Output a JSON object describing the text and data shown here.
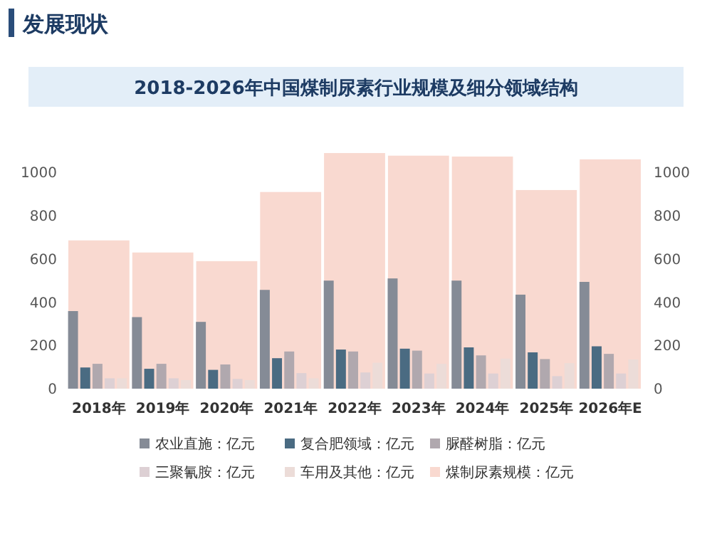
{
  "chart_data": {
    "type": "bar",
    "title": "2018-2026年中国煤制尿素行业规模及细分领域结构",
    "annotations": [
      "发展现状"
    ],
    "categories": [
      "2018年",
      "2019年",
      "2020年",
      "2021年",
      "2022年",
      "2023年",
      "2024年",
      "2025年",
      "2026年E"
    ],
    "series": [
      {
        "name": "农业直施：亿元",
        "color": "#858b96",
        "values": [
          359,
          331,
          309,
          457,
          500,
          510,
          500,
          435,
          494
        ]
      },
      {
        "name": "复合肥领域：亿元",
        "color": "#4a6b82",
        "values": [
          98,
          92,
          87,
          141,
          181,
          185,
          191,
          168,
          196
        ]
      },
      {
        "name": "脲醛树脂：亿元",
        "color": "#b0a8ae",
        "values": [
          115,
          115,
          112,
          172,
          172,
          176,
          154,
          137,
          161
        ]
      },
      {
        "name": "三聚氰胺：亿元",
        "color": "#ddd0d4",
        "values": [
          48,
          48,
          45,
          72,
          75,
          70,
          70,
          58,
          70
        ]
      },
      {
        "name": "车用及其他：亿元",
        "color": "#ecdcd8",
        "values": [
          48,
          40,
          40,
          48,
          120,
          115,
          139,
          118,
          135
        ]
      },
      {
        "name": "煤制尿素规模：亿元",
        "color": "#f9d9d0",
        "axis": "y2",
        "values": [
          686,
          630,
          590,
          910,
          1090,
          1078,
          1074,
          919,
          1061
        ]
      }
    ],
    "ylim": [
      0,
      1100
    ],
    "yticks": [
      0,
      200,
      400,
      600,
      800,
      1000
    ],
    "y2lim": [
      0,
      1100
    ],
    "y2ticks": [
      0,
      200,
      400,
      600,
      800,
      1000
    ],
    "grid": false,
    "legend": "bottom"
  }
}
